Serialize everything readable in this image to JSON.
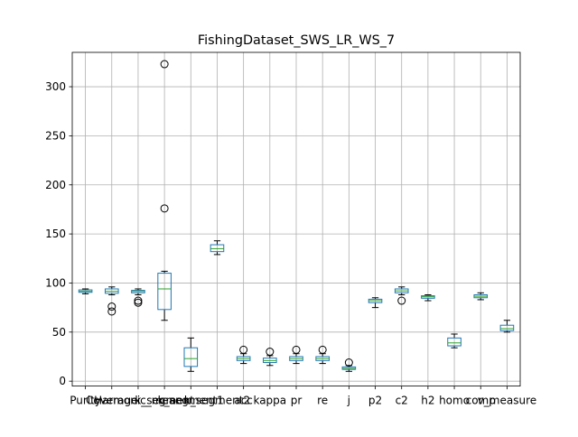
{
  "chart_data": {
    "type": "box",
    "title": "FishingDataset_SWS_LR_WS_7",
    "xlabel": "",
    "ylabel": "",
    "ylim": [
      -5,
      335
    ],
    "yticks": [
      0,
      50,
      100,
      150,
      200,
      250,
      300
    ],
    "grid": true,
    "colors": {
      "box": "#1f77b4",
      "median": "#2ca02c",
      "whisker": "#000000",
      "grid": "#b0b0b0"
    },
    "categories": [
      "Purity",
      "Coverage",
      "Harmonic_mean",
      "k_segment",
      "k_segment1",
      "k_segment2",
      "acc",
      "kappa",
      "pr",
      "re",
      "j",
      "p2",
      "c2",
      "h2",
      "homo",
      "comp",
      "v_measure"
    ],
    "boxes": [
      {
        "category": "Purity",
        "whislo": 89,
        "q1": 90.5,
        "med": 91.5,
        "q3": 93,
        "whishi": 94,
        "fliers": []
      },
      {
        "category": "Coverage",
        "whislo": 88,
        "q1": 89.5,
        "med": 91.5,
        "q3": 94,
        "whishi": 96,
        "fliers": [
          76,
          71
        ]
      },
      {
        "category": "Harmonic_mean",
        "whislo": 88,
        "q1": 90,
        "med": 91.5,
        "q3": 92.5,
        "whishi": 94,
        "fliers": [
          82,
          80
        ]
      },
      {
        "category": "k_segment",
        "whislo": 62,
        "q1": 73,
        "med": 94,
        "q3": 110,
        "whishi": 112,
        "fliers": [
          323,
          176
        ]
      },
      {
        "category": "k_segment1",
        "whislo": 10,
        "q1": 15,
        "med": 23,
        "q3": 34,
        "whishi": 44,
        "fliers": []
      },
      {
        "category": "k_segment2",
        "whislo": 129,
        "q1": 132,
        "med": 135,
        "q3": 139,
        "whishi": 143,
        "fliers": []
      },
      {
        "category": "acc",
        "whislo": 18,
        "q1": 21,
        "med": 23,
        "q3": 25,
        "whishi": 28,
        "fliers": [
          32
        ]
      },
      {
        "category": "kappa",
        "whislo": 16,
        "q1": 19,
        "med": 21,
        "q3": 23.5,
        "whishi": 26,
        "fliers": [
          30
        ]
      },
      {
        "category": "pr",
        "whislo": 18,
        "q1": 21,
        "med": 23,
        "q3": 25,
        "whishi": 28,
        "fliers": [
          32
        ]
      },
      {
        "category": "re",
        "whislo": 18,
        "q1": 21,
        "med": 23,
        "q3": 25,
        "whishi": 28,
        "fliers": [
          32
        ]
      },
      {
        "category": "j",
        "whislo": 10,
        "q1": 12,
        "med": 13,
        "q3": 14.5,
        "whishi": 16,
        "fliers": [
          19
        ]
      },
      {
        "category": "p2",
        "whislo": 75,
        "q1": 80,
        "med": 82,
        "q3": 83.5,
        "whishi": 85,
        "fliers": []
      },
      {
        "category": "c2",
        "whislo": 88,
        "q1": 90,
        "med": 92,
        "q3": 94,
        "whishi": 96,
        "fliers": [
          82
        ]
      },
      {
        "category": "h2",
        "whislo": 82,
        "q1": 84.5,
        "med": 86,
        "q3": 87,
        "whishi": 88,
        "fliers": []
      },
      {
        "category": "homo",
        "whislo": 34,
        "q1": 36,
        "med": 39,
        "q3": 44,
        "whishi": 48,
        "fliers": []
      },
      {
        "category": "comp",
        "whislo": 83,
        "q1": 85,
        "med": 86.5,
        "q3": 88,
        "whishi": 90,
        "fliers": []
      },
      {
        "category": "v_measure",
        "whislo": 50,
        "q1": 51.5,
        "med": 53.5,
        "q3": 57,
        "whishi": 62,
        "fliers": []
      }
    ]
  }
}
